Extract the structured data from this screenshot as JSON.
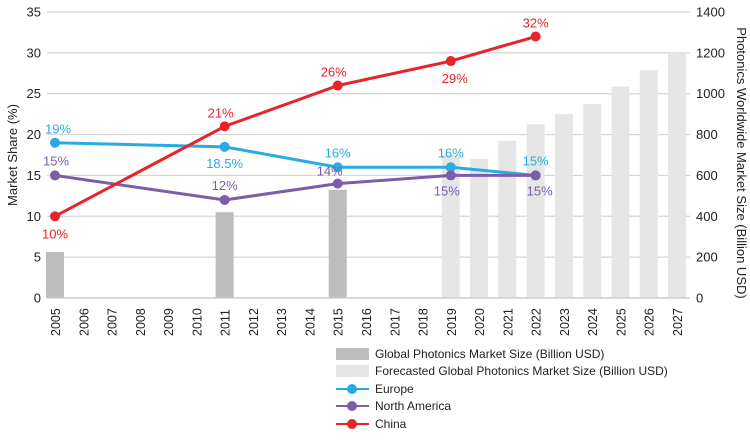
{
  "chart_data": {
    "type": "bar+line",
    "x": [
      2005,
      2006,
      2007,
      2008,
      2009,
      2010,
      2011,
      2012,
      2013,
      2014,
      2015,
      2016,
      2017,
      2018,
      2019,
      2020,
      2021,
      2022,
      2023,
      2024,
      2025,
      2026,
      2027
    ],
    "ylabel": "Market Share (%)",
    "y2label": "Photonics Worldwide Market Size (Billion USD)",
    "ylim": [
      0,
      35
    ],
    "yticks": [
      0,
      5,
      10,
      15,
      20,
      25,
      30,
      35
    ],
    "y2lim": [
      0,
      1400
    ],
    "y2ticks": [
      0,
      200,
      400,
      600,
      800,
      1000,
      1200,
      1400
    ],
    "grid": true,
    "legend_placement": "bottom",
    "bars": [
      {
        "name": "Global Photonics Market Size (Billion USD)",
        "color": "#bdbdbd",
        "points": [
          [
            2005,
            225
          ],
          [
            2011,
            420
          ],
          [
            2015,
            530
          ]
        ]
      },
      {
        "name": "Forecasted Global Photonics Market Size (Billion USD)",
        "color": "#e6e6e6",
        "points": [
          [
            2019,
            700
          ],
          [
            2020,
            680
          ],
          [
            2021,
            770
          ],
          [
            2022,
            850
          ],
          [
            2023,
            900
          ],
          [
            2024,
            950
          ],
          [
            2025,
            1035
          ],
          [
            2026,
            1115
          ],
          [
            2027,
            1200
          ]
        ]
      }
    ],
    "series": [
      {
        "name": "Europe",
        "color": "#29abe2",
        "points": [
          [
            2005,
            19
          ],
          [
            2011,
            18.5
          ],
          [
            2015,
            16
          ],
          [
            2019,
            16
          ],
          [
            2022,
            15
          ]
        ],
        "labels": [
          "19%",
          "18.5%",
          "16%",
          "16%",
          "15%"
        ]
      },
      {
        "name": "North America",
        "color": "#7b5ea7",
        "points": [
          [
            2005,
            15
          ],
          [
            2011,
            12
          ],
          [
            2015,
            14
          ],
          [
            2019,
            15
          ],
          [
            2022,
            15
          ]
        ],
        "labels": [
          "15%",
          "12%",
          "14%",
          "15%",
          "15%"
        ]
      },
      {
        "name": "China",
        "color": "#e8232a",
        "points": [
          [
            2005,
            10
          ],
          [
            2011,
            21
          ],
          [
            2015,
            26
          ],
          [
            2019,
            29
          ],
          [
            2022,
            32
          ]
        ],
        "labels": [
          "10%",
          "21%",
          "26%",
          "29%",
          "32%"
        ]
      }
    ]
  }
}
